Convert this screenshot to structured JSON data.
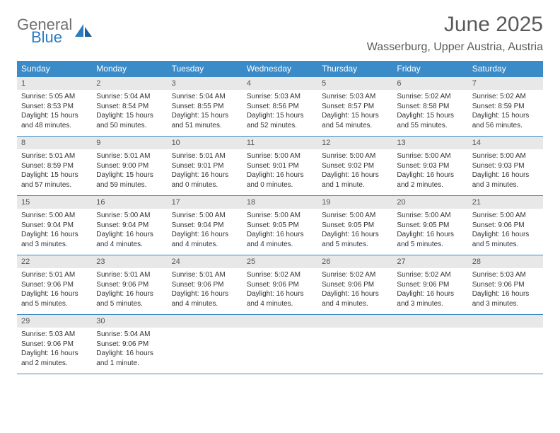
{
  "logo": {
    "text1": "General",
    "text2": "Blue"
  },
  "title": "June 2025",
  "location": "Wasserburg, Upper Austria, Austria",
  "colors": {
    "header_bg": "#3b8bc8",
    "header_text": "#ffffff",
    "daynum_bg": "#e8e8e8",
    "rule": "#3b8bc8",
    "body_text": "#333333",
    "title_text": "#5a5a5a",
    "logo_general": "#6f6f6f",
    "logo_blue": "#2b7bbf",
    "page_bg": "#ffffff"
  },
  "fonts": {
    "title_size": 30,
    "location_size": 16,
    "weekday_size": 12,
    "daynum_size": 11,
    "body_size": 10
  },
  "weekdays": [
    "Sunday",
    "Monday",
    "Tuesday",
    "Wednesday",
    "Thursday",
    "Friday",
    "Saturday"
  ],
  "weeks": [
    [
      {
        "n": "1",
        "sunrise": "5:05 AM",
        "sunset": "8:53 PM",
        "daylight": "15 hours and 48 minutes."
      },
      {
        "n": "2",
        "sunrise": "5:04 AM",
        "sunset": "8:54 PM",
        "daylight": "15 hours and 50 minutes."
      },
      {
        "n": "3",
        "sunrise": "5:04 AM",
        "sunset": "8:55 PM",
        "daylight": "15 hours and 51 minutes."
      },
      {
        "n": "4",
        "sunrise": "5:03 AM",
        "sunset": "8:56 PM",
        "daylight": "15 hours and 52 minutes."
      },
      {
        "n": "5",
        "sunrise": "5:03 AM",
        "sunset": "8:57 PM",
        "daylight": "15 hours and 54 minutes."
      },
      {
        "n": "6",
        "sunrise": "5:02 AM",
        "sunset": "8:58 PM",
        "daylight": "15 hours and 55 minutes."
      },
      {
        "n": "7",
        "sunrise": "5:02 AM",
        "sunset": "8:59 PM",
        "daylight": "15 hours and 56 minutes."
      }
    ],
    [
      {
        "n": "8",
        "sunrise": "5:01 AM",
        "sunset": "8:59 PM",
        "daylight": "15 hours and 57 minutes."
      },
      {
        "n": "9",
        "sunrise": "5:01 AM",
        "sunset": "9:00 PM",
        "daylight": "15 hours and 59 minutes."
      },
      {
        "n": "10",
        "sunrise": "5:01 AM",
        "sunset": "9:01 PM",
        "daylight": "16 hours and 0 minutes."
      },
      {
        "n": "11",
        "sunrise": "5:00 AM",
        "sunset": "9:01 PM",
        "daylight": "16 hours and 0 minutes."
      },
      {
        "n": "12",
        "sunrise": "5:00 AM",
        "sunset": "9:02 PM",
        "daylight": "16 hours and 1 minute."
      },
      {
        "n": "13",
        "sunrise": "5:00 AM",
        "sunset": "9:03 PM",
        "daylight": "16 hours and 2 minutes."
      },
      {
        "n": "14",
        "sunrise": "5:00 AM",
        "sunset": "9:03 PM",
        "daylight": "16 hours and 3 minutes."
      }
    ],
    [
      {
        "n": "15",
        "sunrise": "5:00 AM",
        "sunset": "9:04 PM",
        "daylight": "16 hours and 3 minutes."
      },
      {
        "n": "16",
        "sunrise": "5:00 AM",
        "sunset": "9:04 PM",
        "daylight": "16 hours and 4 minutes."
      },
      {
        "n": "17",
        "sunrise": "5:00 AM",
        "sunset": "9:04 PM",
        "daylight": "16 hours and 4 minutes."
      },
      {
        "n": "18",
        "sunrise": "5:00 AM",
        "sunset": "9:05 PM",
        "daylight": "16 hours and 4 minutes."
      },
      {
        "n": "19",
        "sunrise": "5:00 AM",
        "sunset": "9:05 PM",
        "daylight": "16 hours and 5 minutes."
      },
      {
        "n": "20",
        "sunrise": "5:00 AM",
        "sunset": "9:05 PM",
        "daylight": "16 hours and 5 minutes."
      },
      {
        "n": "21",
        "sunrise": "5:00 AM",
        "sunset": "9:06 PM",
        "daylight": "16 hours and 5 minutes."
      }
    ],
    [
      {
        "n": "22",
        "sunrise": "5:01 AM",
        "sunset": "9:06 PM",
        "daylight": "16 hours and 5 minutes."
      },
      {
        "n": "23",
        "sunrise": "5:01 AM",
        "sunset": "9:06 PM",
        "daylight": "16 hours and 5 minutes."
      },
      {
        "n": "24",
        "sunrise": "5:01 AM",
        "sunset": "9:06 PM",
        "daylight": "16 hours and 4 minutes."
      },
      {
        "n": "25",
        "sunrise": "5:02 AM",
        "sunset": "9:06 PM",
        "daylight": "16 hours and 4 minutes."
      },
      {
        "n": "26",
        "sunrise": "5:02 AM",
        "sunset": "9:06 PM",
        "daylight": "16 hours and 4 minutes."
      },
      {
        "n": "27",
        "sunrise": "5:02 AM",
        "sunset": "9:06 PM",
        "daylight": "16 hours and 3 minutes."
      },
      {
        "n": "28",
        "sunrise": "5:03 AM",
        "sunset": "9:06 PM",
        "daylight": "16 hours and 3 minutes."
      }
    ],
    [
      {
        "n": "29",
        "sunrise": "5:03 AM",
        "sunset": "9:06 PM",
        "daylight": "16 hours and 2 minutes."
      },
      {
        "n": "30",
        "sunrise": "5:04 AM",
        "sunset": "9:06 PM",
        "daylight": "16 hours and 1 minute."
      },
      null,
      null,
      null,
      null,
      null
    ]
  ],
  "labels": {
    "sunrise": "Sunrise:",
    "sunset": "Sunset:",
    "daylight": "Daylight:"
  }
}
